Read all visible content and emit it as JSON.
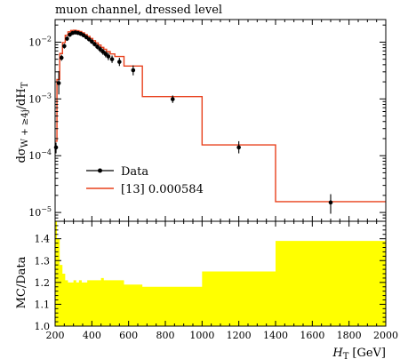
{
  "chart_data": [
    {
      "type": "line",
      "title": "muon channel, dressed level",
      "xlabel": "",
      "ylabel_parts": {
        "base": "dσ",
        "sub": "W + ≥4j",
        "den": "/dH",
        "den_sub": "T"
      },
      "ylog": true,
      "ylim": [
        7e-06,
        0.025
      ],
      "xlim": [
        200,
        2000
      ],
      "y_tick_labels": [
        {
          "value": 0.01,
          "mantissa": "10",
          "exp": "−2"
        },
        {
          "value": 0.001,
          "mantissa": "10",
          "exp": "−3"
        },
        {
          "value": 0.0001,
          "mantissa": "10",
          "exp": "−4"
        },
        {
          "value": 1e-05,
          "mantissa": "10",
          "exp": "−5"
        }
      ],
      "legend": {
        "placement": "center-left",
        "entries": [
          {
            "label": "Data",
            "color": "#000000",
            "style": "marker"
          },
          {
            "label": "[13] 0.000584",
            "color": "#e8401c",
            "style": "line"
          }
        ]
      },
      "series": [
        {
          "name": "Data",
          "x": [
            205,
            220,
            235,
            250,
            265,
            280,
            295,
            310,
            325,
            340,
            355,
            370,
            385,
            400,
            415,
            430,
            445,
            460,
            475,
            490,
            510,
            550,
            625,
            840,
            1200,
            1700
          ],
          "y": [
            0.00014,
            0.0019,
            0.0053,
            0.0085,
            0.0115,
            0.0135,
            0.0145,
            0.0148,
            0.0145,
            0.014,
            0.0132,
            0.0122,
            0.0112,
            0.0102,
            0.0092,
            0.0083,
            0.0075,
            0.0068,
            0.0062,
            0.0056,
            0.005,
            0.0045,
            0.0032,
            0.00099,
            0.00014,
            1.5e-05
          ],
          "err_lo": [
            0.00011,
            0.0012,
            0.0047,
            0.0077,
            0.0105,
            0.0124,
            0.0134,
            0.0138,
            0.0135,
            0.013,
            0.0122,
            0.0112,
            0.0103,
            0.0093,
            0.0084,
            0.0075,
            0.0067,
            0.006,
            0.0054,
            0.0048,
            0.0043,
            0.0038,
            0.0026,
            0.00085,
            0.00011,
            9.5e-06
          ],
          "err_hi": [
            0.00017,
            0.0031,
            0.006,
            0.0094,
            0.0126,
            0.0147,
            0.0157,
            0.0159,
            0.0156,
            0.015,
            0.0143,
            0.0133,
            0.0122,
            0.0112,
            0.0101,
            0.0092,
            0.0084,
            0.0077,
            0.007,
            0.0065,
            0.0058,
            0.0053,
            0.0039,
            0.00115,
            0.00018,
            2.1e-05
          ]
        },
        {
          "name": "[13] 0.000584",
          "type": "step",
          "edges": [
            200,
            210,
            225,
            240,
            255,
            270,
            285,
            300,
            315,
            330,
            345,
            360,
            375,
            390,
            405,
            420,
            435,
            450,
            465,
            480,
            500,
            525,
            575,
            675,
            1000,
            1400,
            2000
          ],
          "values": [
            0.00018,
            0.0022,
            0.0063,
            0.0098,
            0.0132,
            0.0152,
            0.016,
            0.0162,
            0.0159,
            0.0154,
            0.0146,
            0.0136,
            0.0126,
            0.0116,
            0.0106,
            0.0097,
            0.0089,
            0.0081,
            0.0075,
            0.0068,
            0.0062,
            0.0056,
            0.0038,
            0.0011,
            0.000155,
            1.55e-05
          ]
        }
      ]
    },
    {
      "type": "area",
      "xlabel_parts": {
        "base": "H",
        "sub": "T",
        "unit": "[GeV]"
      },
      "ylabel": "MC/Data",
      "xlim": [
        200,
        2000
      ],
      "ylim": [
        1.0,
        1.48
      ],
      "x_tick_labels": [
        "200",
        "400",
        "600",
        "800",
        "1000",
        "1200",
        "1400",
        "1600",
        "1800",
        "2000"
      ],
      "y_tick_labels": [
        "1.0",
        "1.1",
        "1.2",
        "1.3",
        "1.4"
      ],
      "band_color": "#ffff00",
      "band": {
        "edges": [
          200,
          210,
          225,
          240,
          255,
          270,
          285,
          300,
          315,
          330,
          345,
          360,
          375,
          390,
          405,
          420,
          435,
          450,
          465,
          480,
          500,
          525,
          575,
          675,
          1000,
          1400,
          2000
        ],
        "upper": [
          1.48,
          1.4,
          1.28,
          1.24,
          1.21,
          1.2,
          1.2,
          1.21,
          1.2,
          1.21,
          1.2,
          1.2,
          1.21,
          1.21,
          1.21,
          1.21,
          1.21,
          1.22,
          1.21,
          1.21,
          1.21,
          1.21,
          1.19,
          1.18,
          1.25,
          1.39
        ],
        "lower": [
          1.0,
          1.0,
          1.0,
          1.0,
          1.0,
          1.0,
          1.0,
          1.0,
          1.0,
          1.0,
          1.0,
          1.0,
          1.0,
          1.0,
          1.0,
          1.0,
          1.0,
          1.0,
          1.0,
          1.0,
          1.0,
          1.0,
          1.0,
          1.0,
          1.0,
          1.0
        ]
      }
    }
  ]
}
